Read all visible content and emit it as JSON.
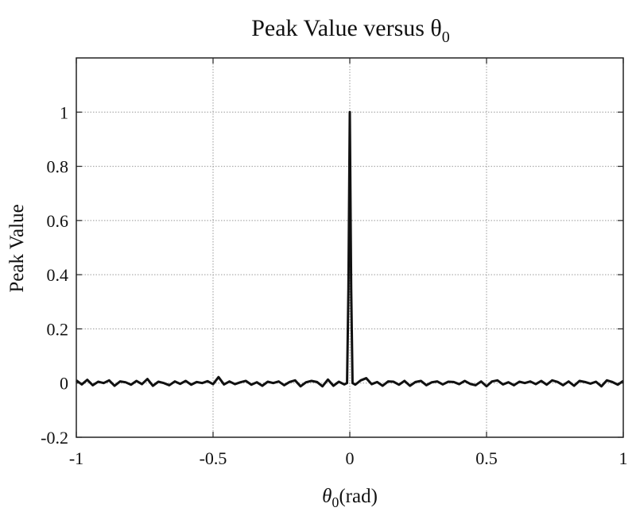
{
  "colors": {
    "background": "#ffffff",
    "line": "#111111",
    "grid": "#9a9a9a",
    "axes": "#222222"
  },
  "chart_data": {
    "type": "line",
    "title": "Peak Value versus θ",
    "title_subscript": "0",
    "xlabel_symbol": "θ",
    "xlabel_subscript": "0",
    "xlabel_unit": "(rad)",
    "ylabel": "Peak Value",
    "xlim": [
      -1,
      1
    ],
    "ylim": [
      -0.2,
      1.2
    ],
    "xticks": [
      -1,
      -0.5,
      0,
      0.5,
      1
    ],
    "xtick_labels": [
      "-1",
      "-0.5",
      "0",
      "0.5",
      "1"
    ],
    "yticks": [
      -0.2,
      0,
      0.2,
      0.4,
      0.6,
      0.8,
      1
    ],
    "ytick_labels": [
      "-0.2",
      "0",
      "0.2",
      "0.4",
      "0.6",
      "0.8",
      "1"
    ],
    "grid": true,
    "series": [
      {
        "x": [
          -1.0,
          -0.98,
          -0.96,
          -0.94,
          -0.92,
          -0.9,
          -0.88,
          -0.86,
          -0.84,
          -0.82,
          -0.8,
          -0.78,
          -0.76,
          -0.74,
          -0.72,
          -0.7,
          -0.68,
          -0.66,
          -0.64,
          -0.62,
          -0.6,
          -0.58,
          -0.56,
          -0.54,
          -0.52,
          -0.5,
          -0.48,
          -0.46,
          -0.44,
          -0.42,
          -0.4,
          -0.38,
          -0.36,
          -0.34,
          -0.32,
          -0.3,
          -0.28,
          -0.26,
          -0.24,
          -0.22,
          -0.2,
          -0.18,
          -0.16,
          -0.14,
          -0.12,
          -0.1,
          -0.08,
          -0.06,
          -0.04,
          -0.02,
          -0.01,
          -0.005,
          0.0,
          0.005,
          0.01,
          0.02,
          0.04,
          0.06,
          0.08,
          0.1,
          0.12,
          0.14,
          0.16,
          0.18,
          0.2,
          0.22,
          0.24,
          0.26,
          0.28,
          0.3,
          0.32,
          0.34,
          0.36,
          0.38,
          0.4,
          0.42,
          0.44,
          0.46,
          0.48,
          0.5,
          0.52,
          0.54,
          0.56,
          0.58,
          0.6,
          0.62,
          0.64,
          0.66,
          0.68,
          0.7,
          0.72,
          0.74,
          0.76,
          0.78,
          0.8,
          0.82,
          0.84,
          0.86,
          0.88,
          0.9,
          0.92,
          0.94,
          0.96,
          0.98,
          1.0
        ],
        "y": [
          0.01,
          -0.005,
          0.012,
          -0.008,
          0.005,
          0.0,
          0.01,
          -0.01,
          0.006,
          0.003,
          -0.006,
          0.008,
          -0.004,
          0.015,
          -0.01,
          0.005,
          0.0,
          -0.008,
          0.006,
          -0.003,
          0.008,
          -0.006,
          0.004,
          0.0,
          0.007,
          -0.004,
          0.022,
          -0.005,
          0.006,
          -0.004,
          0.003,
          0.008,
          -0.006,
          0.003,
          -0.01,
          0.005,
          0.0,
          0.006,
          -0.008,
          0.004,
          0.01,
          -0.012,
          0.003,
          0.008,
          0.004,
          -0.012,
          0.013,
          -0.01,
          0.005,
          -0.005,
          0.0,
          0.35,
          1.0,
          0.35,
          0.0,
          -0.006,
          0.01,
          0.018,
          -0.004,
          0.004,
          -0.01,
          0.006,
          0.005,
          -0.006,
          0.008,
          -0.01,
          0.004,
          0.008,
          -0.008,
          0.003,
          0.006,
          -0.005,
          0.005,
          0.004,
          -0.004,
          0.008,
          -0.003,
          -0.008,
          0.006,
          -0.012,
          0.006,
          0.01,
          -0.005,
          0.003,
          -0.008,
          0.005,
          0.0,
          0.006,
          -0.004,
          0.008,
          -0.006,
          0.01,
          0.004,
          -0.008,
          0.006,
          -0.01,
          0.008,
          0.004,
          -0.002,
          0.005,
          -0.012,
          0.01,
          0.004,
          -0.006,
          0.008
        ]
      }
    ]
  }
}
